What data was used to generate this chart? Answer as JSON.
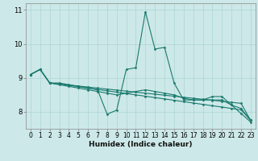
{
  "xlabel": "Humidex (Indice chaleur)",
  "xlim": [
    -0.5,
    23.5
  ],
  "ylim": [
    7.5,
    11.2
  ],
  "yticks": [
    8,
    9,
    10,
    11
  ],
  "xticks": [
    0,
    1,
    2,
    3,
    4,
    5,
    6,
    7,
    8,
    9,
    10,
    11,
    12,
    13,
    14,
    15,
    16,
    17,
    18,
    19,
    20,
    21,
    22,
    23
  ],
  "bg_color": "#cde8e8",
  "grid_color": "#add4d4",
  "line_color": "#1a7a6e",
  "lines": [
    {
      "x": [
        0,
        1,
        2,
        3,
        4,
        5,
        6,
        7,
        8,
        9,
        10,
        11,
        12,
        13,
        14,
        15,
        16,
        17,
        18,
        19,
        20,
        21,
        22,
        23
      ],
      "y": [
        9.1,
        9.25,
        8.85,
        8.85,
        8.8,
        8.75,
        8.7,
        8.65,
        7.93,
        8.05,
        9.25,
        9.3,
        10.95,
        9.85,
        9.9,
        8.85,
        8.35,
        8.35,
        8.35,
        8.45,
        8.45,
        8.2,
        7.95,
        7.7
      ]
    },
    {
      "x": [
        0,
        1,
        2,
        3,
        4,
        5,
        6,
        7,
        8,
        9,
        10,
        11,
        12,
        13,
        14,
        15,
        16,
        17,
        18,
        19,
        20,
        21,
        22,
        23
      ],
      "y": [
        9.1,
        9.25,
        8.85,
        8.82,
        8.78,
        8.74,
        8.7,
        8.66,
        8.62,
        8.58,
        8.54,
        8.5,
        8.46,
        8.42,
        8.38,
        8.34,
        8.3,
        8.26,
        8.22,
        8.18,
        8.14,
        8.1,
        8.06,
        7.75
      ]
    },
    {
      "x": [
        0,
        1,
        2,
        3,
        4,
        5,
        6,
        7,
        8,
        9,
        10,
        11,
        12,
        13,
        14,
        15,
        16,
        17,
        18,
        19,
        20,
        21,
        22,
        23
      ],
      "y": [
        9.1,
        9.25,
        8.85,
        8.8,
        8.75,
        8.7,
        8.65,
        8.6,
        8.55,
        8.5,
        8.55,
        8.6,
        8.65,
        8.6,
        8.55,
        8.5,
        8.4,
        8.35,
        8.35,
        8.35,
        8.35,
        8.2,
        8.1,
        7.75
      ]
    },
    {
      "x": [
        0,
        1,
        2,
        3,
        4,
        5,
        6,
        7,
        8,
        9,
        10,
        11,
        12,
        13,
        14,
        15,
        16,
        17,
        18,
        19,
        20,
        21,
        22,
        23
      ],
      "y": [
        9.1,
        9.25,
        8.85,
        8.82,
        8.79,
        8.76,
        8.73,
        8.7,
        8.67,
        8.64,
        8.61,
        8.58,
        8.55,
        8.52,
        8.49,
        8.46,
        8.43,
        8.4,
        8.37,
        8.34,
        8.31,
        8.28,
        8.25,
        7.75
      ]
    }
  ]
}
